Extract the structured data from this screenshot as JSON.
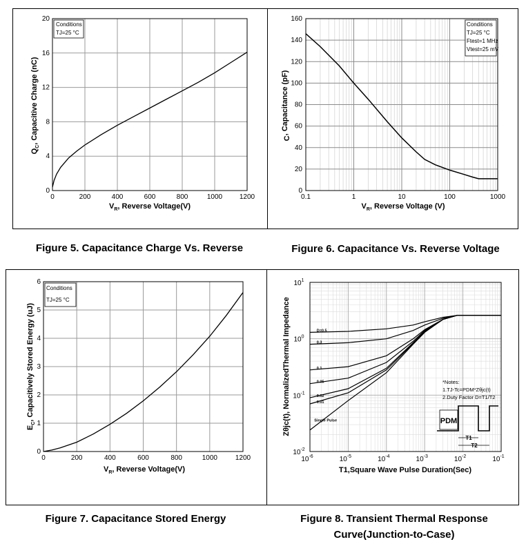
{
  "captions": {
    "fig5": "Figure 5. Capacitance Charge Vs. Reverse",
    "fig6": "Figure 6. Capacitance Vs. Reverse Voltage",
    "fig7": "Figure 7. Capacitance Stored Energy",
    "fig8_line1": "Figure 8. Transient Thermal Response",
    "fig8_line2": "Curve(Junction-to-Case)"
  },
  "chart_data": [
    {
      "id": "fig5",
      "type": "line",
      "xlabel": "VR,  Reverse Voltage(V)",
      "ylabel": "QC, Capacitive Charge (nC)",
      "xlim": [
        0,
        1200
      ],
      "ylim": [
        0,
        20
      ],
      "xticks": [
        0,
        200,
        400,
        600,
        800,
        1000,
        1200
      ],
      "yticks": [
        0,
        4,
        8,
        12,
        16,
        20
      ],
      "grid": true,
      "conditions": [
        "Conditions",
        "TJ=25 °C"
      ],
      "series": [
        {
          "x": [
            0,
            10,
            25,
            50,
            100,
            150,
            200,
            300,
            400,
            500,
            600,
            700,
            800,
            900,
            1000,
            1100,
            1200
          ],
          "y": [
            0.4,
            1.2,
            1.9,
            2.7,
            3.8,
            4.6,
            5.3,
            6.5,
            7.6,
            8.6,
            9.6,
            10.6,
            11.6,
            12.6,
            13.7,
            14.9,
            16.1
          ]
        }
      ]
    },
    {
      "id": "fig6",
      "type": "line",
      "xscale": "log",
      "xlabel": "VR, Reverse Voltage (V)",
      "ylabel": "C, Capacitance (pF)",
      "xlim": [
        0.1,
        1000
      ],
      "ylim": [
        0,
        160
      ],
      "xticks": [
        "0.1",
        "1",
        "10",
        "100",
        "1000"
      ],
      "yticks": [
        0,
        20,
        40,
        60,
        80,
        100,
        120,
        140,
        160
      ],
      "grid": true,
      "conditions": [
        "Conditions",
        "TJ=25 °C",
        "Ftest=1 MHz",
        "Vtest=25 mV"
      ],
      "series": [
        {
          "x": [
            0.1,
            0.2,
            0.5,
            1,
            2,
            5,
            10,
            20,
            30,
            50,
            100,
            200,
            300,
            400,
            500,
            1000
          ],
          "y": [
            146,
            134,
            116,
            100,
            85,
            64,
            49,
            36,
            29,
            24,
            19,
            15,
            12.5,
            11,
            11,
            11
          ]
        }
      ]
    },
    {
      "id": "fig7",
      "type": "line",
      "xlabel": "VR,  Reverse Voltage(V)",
      "ylabel": "EC, Capacitively Stored Energy (uJ)",
      "xlim": [
        0,
        1200
      ],
      "ylim": [
        0,
        6
      ],
      "xticks": [
        0,
        200,
        400,
        600,
        800,
        1000,
        1200
      ],
      "yticks": [
        0,
        1,
        2,
        3,
        4,
        5,
        6
      ],
      "grid": true,
      "conditions": [
        "Conditions",
        "TJ=25 °C"
      ],
      "series": [
        {
          "x": [
            0,
            50,
            100,
            200,
            300,
            400,
            500,
            600,
            700,
            800,
            900,
            1000,
            1100,
            1200
          ],
          "y": [
            0,
            0.05,
            0.13,
            0.33,
            0.62,
            0.96,
            1.35,
            1.79,
            2.28,
            2.82,
            3.42,
            4.07,
            4.81,
            5.62
          ]
        }
      ]
    },
    {
      "id": "fig8",
      "type": "line",
      "xscale": "log",
      "yscale": "log",
      "xlabel": "T1,Square Wave Pulse Duration(Sec)",
      "ylabel": "Zθjc(t), NormalizedThermal Impedance",
      "xlim": [
        1e-06,
        0.1
      ],
      "ylim": [
        0.01,
        10
      ],
      "xtick_bases": [
        "10",
        "10",
        "10",
        "10",
        "10",
        "10"
      ],
      "xtick_exps": [
        "-6",
        "-5",
        "-4",
        "-3",
        "-2",
        "-1"
      ],
      "ytick_bases": [
        "10",
        "10",
        "10",
        "10"
      ],
      "ytick_exps": [
        "-2",
        "-1",
        "0",
        "1"
      ],
      "grid": true,
      "notes": [
        "*Notes:",
        "1.TJ-Tc=PDM*Zθjc(t)",
        "2.Duty Factor D=T1/T2"
      ],
      "pulse_labels": {
        "pdm": "PDM",
        "t1": "T1",
        "t2": "T2"
      },
      "series": [
        {
          "name": "D=0.5",
          "x": [
            1e-06,
            1e-05,
            0.0001,
            0.0005,
            0.001,
            0.003,
            0.007,
            0.01,
            0.1
          ],
          "y": [
            1.3,
            1.35,
            1.5,
            1.75,
            2.0,
            2.4,
            2.6,
            2.6,
            2.6
          ]
        },
        {
          "name": "0.3",
          "x": [
            1e-06,
            1e-05,
            0.0001,
            0.0005,
            0.001,
            0.003,
            0.007,
            0.01,
            0.1
          ],
          "y": [
            0.8,
            0.85,
            1.0,
            1.4,
            1.75,
            2.3,
            2.6,
            2.6,
            2.6
          ]
        },
        {
          "name": "0.1",
          "x": [
            1e-06,
            1e-05,
            0.0001,
            0.0005,
            0.001,
            0.003,
            0.007,
            0.01,
            0.1
          ],
          "y": [
            0.28,
            0.32,
            0.5,
            1.0,
            1.45,
            2.2,
            2.6,
            2.6,
            2.6
          ]
        },
        {
          "name": "0.05",
          "x": [
            1e-06,
            1e-05,
            0.0001,
            0.0005,
            0.001,
            0.003,
            0.007,
            0.01,
            0.1
          ],
          "y": [
            0.16,
            0.2,
            0.38,
            0.9,
            1.4,
            2.2,
            2.6,
            2.6,
            2.6
          ]
        },
        {
          "name": "0.02",
          "x": [
            1e-06,
            1e-05,
            0.0001,
            0.0005,
            0.001,
            0.003,
            0.007,
            0.01,
            0.1
          ],
          "y": [
            0.09,
            0.13,
            0.3,
            0.85,
            1.35,
            2.2,
            2.6,
            2.6,
            2.6
          ]
        },
        {
          "name": "0.01",
          "x": [
            1e-06,
            1e-05,
            0.0001,
            0.0005,
            0.001,
            0.003,
            0.007,
            0.01,
            0.1
          ],
          "y": [
            0.07,
            0.11,
            0.28,
            0.82,
            1.32,
            2.2,
            2.6,
            2.6,
            2.6
          ]
        },
        {
          "name": "Single Pulse",
          "x": [
            1e-06,
            1e-05,
            0.0001,
            0.0005,
            0.001,
            0.003,
            0.007,
            0.01,
            0.1
          ],
          "y": [
            0.024,
            0.08,
            0.25,
            0.8,
            1.3,
            2.2,
            2.6,
            2.6,
            2.6
          ]
        }
      ]
    }
  ]
}
